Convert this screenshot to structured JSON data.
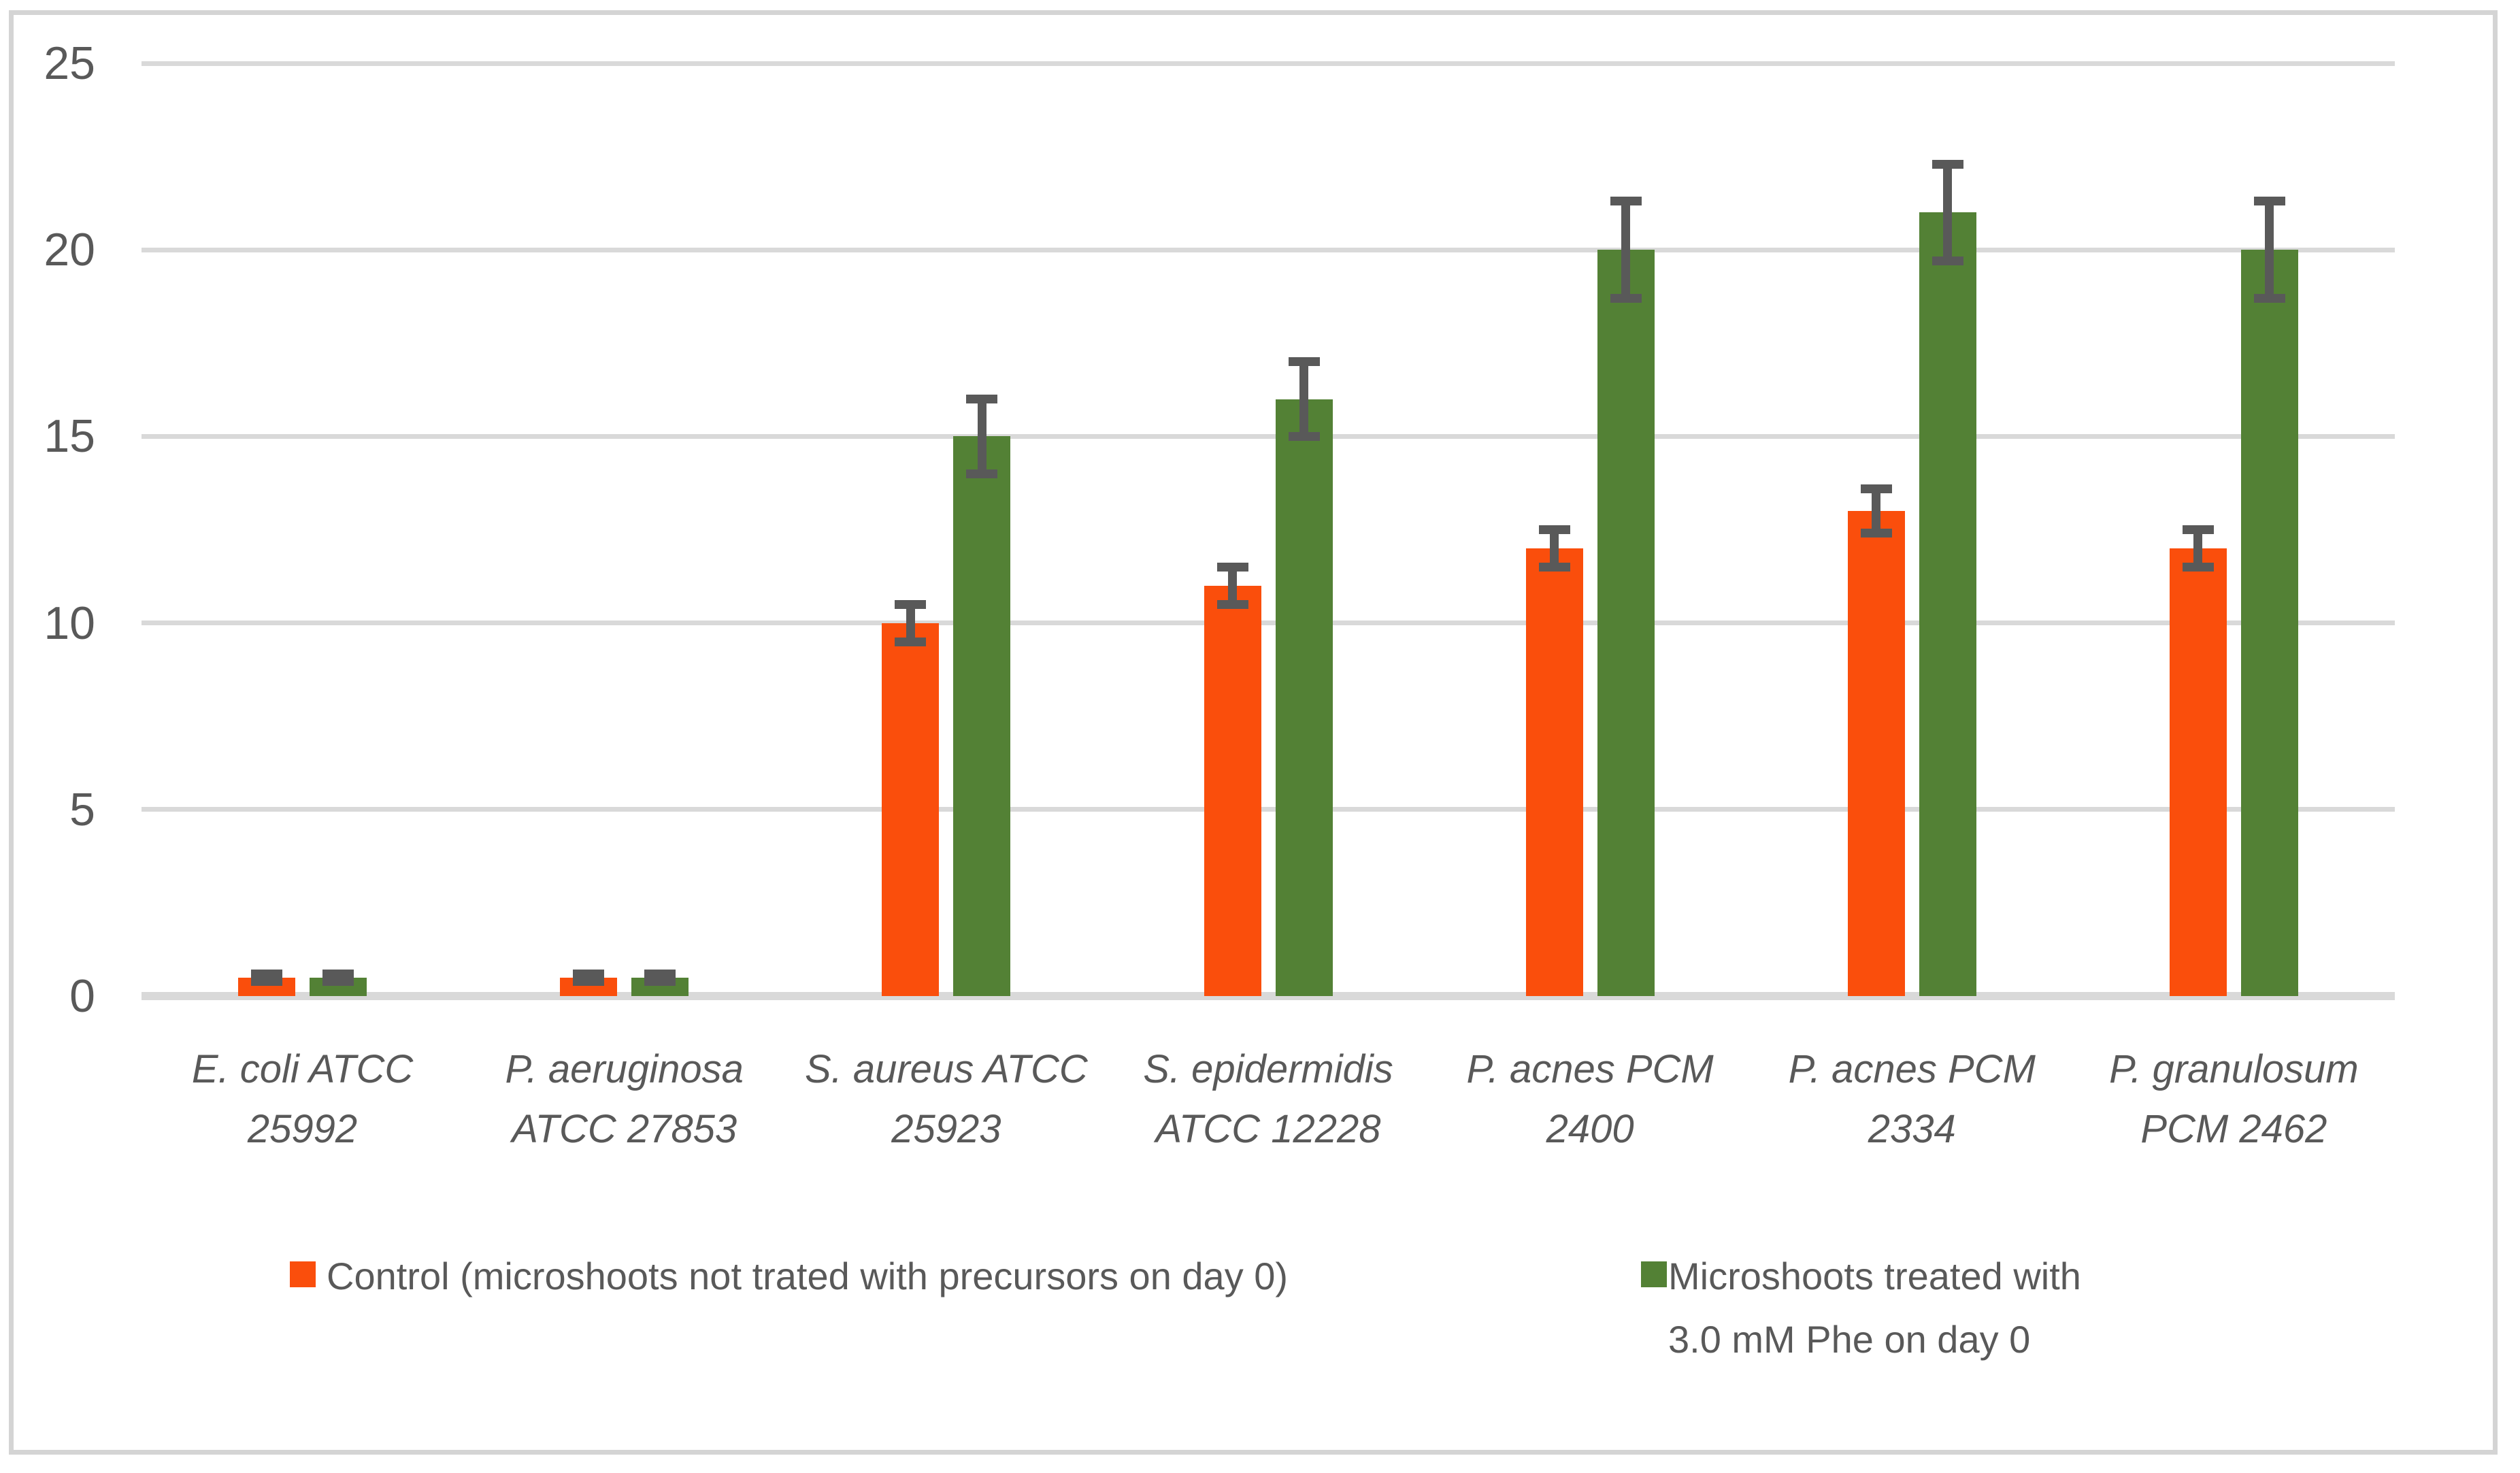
{
  "chart_data": {
    "type": "bar",
    "title": "",
    "xlabel": "",
    "ylabel": "",
    "categories": [
      "E. coli ATCC 25992",
      "P. aeruginosa ATCC 27853",
      "S. aureus ATCC 25923",
      "S. epidermidis ATCC 12228",
      "P. acnes PCM 2400",
      "P. acnes PCM 2334",
      "P. granulosum PCM 2462"
    ],
    "category_label_lines": [
      [
        "E. coli ATCC",
        "25992"
      ],
      [
        "P. aeruginosa",
        "ATCC 27853"
      ],
      [
        "S. aureus ATCC",
        "25923"
      ],
      [
        "S. epidermidis",
        "ATCC 12228"
      ],
      [
        "P. acnes PCM",
        "2400"
      ],
      [
        "P. acnes PCM",
        "2334"
      ],
      [
        "P. granulosum",
        "PCM 2462"
      ]
    ],
    "series": [
      {
        "name": "Control (microshoots not trated with precursors on day 0)",
        "name_lines": [
          "Control (microshoots not trated with precursors on day 0)"
        ],
        "color": "#FA4E0C",
        "values": [
          0.5,
          0.5,
          10,
          11,
          12,
          13,
          12
        ],
        "errors": [
          0.1,
          0.1,
          0.5,
          0.5,
          0.5,
          0.6,
          0.5
        ]
      },
      {
        "name": "Microshoots treated with 3.0 mM Phe on day 0",
        "name_lines": [
          "Microshoots treated with",
          "3.0 mM Phe on day 0"
        ],
        "color": "#538135",
        "values": [
          0.5,
          0.5,
          15,
          16,
          20,
          21,
          20
        ],
        "errors": [
          0.1,
          0.1,
          1.0,
          1.0,
          1.3,
          1.3,
          1.3
        ]
      }
    ],
    "y_axis": {
      "min": 0,
      "max": 25,
      "step": 5,
      "tick_labels": [
        "0",
        "5",
        "10",
        "15",
        "20",
        "25"
      ]
    },
    "grid": true,
    "legend_position": "bottom",
    "colors": {
      "gridline": "#D9D9D9",
      "axis_line": "#D9D9D9",
      "error_bar": "#595959",
      "text": "#595959",
      "border": "#D4D4D4",
      "background": "#FFFFFF"
    }
  }
}
